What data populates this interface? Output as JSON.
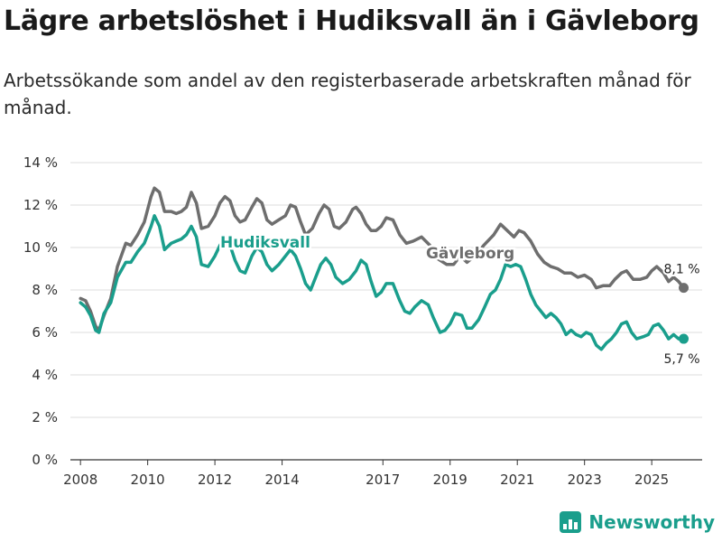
{
  "title": "Lägre arbetslöshet i Hudiksvall än i Gävleborg",
  "subtitle": "Arbetssökande som andel av den registerbaserade arbetskraften månad för månad.",
  "brand": {
    "name": "Newsworthy",
    "icon": "newsworthy-logo-icon"
  },
  "chart_data": {
    "type": "line",
    "unit": "%",
    "ylim": [
      0,
      14
    ],
    "xlim": [
      2007.7,
      2026.5
    ],
    "yticks": [
      0,
      2,
      4,
      6,
      8,
      10,
      12,
      14
    ],
    "ytick_labels": [
      "0 %",
      "2 %",
      "4 %",
      "6 %",
      "8 %",
      "10 %",
      "12 %",
      "14 %"
    ],
    "xticks": [
      2008,
      2010,
      2012,
      2014,
      2017,
      2019,
      2021,
      2023,
      2025
    ],
    "xtick_labels": [
      "2008",
      "2010",
      "2012",
      "2014",
      "2017",
      "2019",
      "2021",
      "2023",
      "2025"
    ],
    "grid": true,
    "series": [
      {
        "name": "Gävleborg",
        "color": "#6e6e6e",
        "end_label": "8,1 %",
        "points": [
          [
            2008.0,
            7.6
          ],
          [
            2008.15,
            7.5
          ],
          [
            2008.3,
            7.0
          ],
          [
            2008.45,
            6.3
          ],
          [
            2008.55,
            6.1
          ],
          [
            2008.7,
            6.8
          ],
          [
            2008.9,
            7.6
          ],
          [
            2009.1,
            9.1
          ],
          [
            2009.35,
            10.2
          ],
          [
            2009.5,
            10.1
          ],
          [
            2009.7,
            10.6
          ],
          [
            2009.9,
            11.2
          ],
          [
            2010.1,
            12.4
          ],
          [
            2010.2,
            12.8
          ],
          [
            2010.35,
            12.6
          ],
          [
            2010.5,
            11.7
          ],
          [
            2010.7,
            11.7
          ],
          [
            2010.85,
            11.6
          ],
          [
            2011.0,
            11.7
          ],
          [
            2011.15,
            11.9
          ],
          [
            2011.3,
            12.6
          ],
          [
            2011.45,
            12.1
          ],
          [
            2011.6,
            10.9
          ],
          [
            2011.8,
            11.0
          ],
          [
            2012.0,
            11.5
          ],
          [
            2012.15,
            12.1
          ],
          [
            2012.3,
            12.4
          ],
          [
            2012.45,
            12.2
          ],
          [
            2012.6,
            11.5
          ],
          [
            2012.75,
            11.2
          ],
          [
            2012.9,
            11.3
          ],
          [
            2013.1,
            11.9
          ],
          [
            2013.25,
            12.3
          ],
          [
            2013.4,
            12.1
          ],
          [
            2013.55,
            11.3
          ],
          [
            2013.7,
            11.1
          ],
          [
            2013.9,
            11.3
          ],
          [
            2014.1,
            11.5
          ],
          [
            2014.25,
            12.0
          ],
          [
            2014.4,
            11.9
          ],
          [
            2014.55,
            11.2
          ],
          [
            2014.7,
            10.6
          ],
          [
            2014.9,
            10.9
          ],
          [
            2015.1,
            11.6
          ],
          [
            2015.25,
            12.0
          ],
          [
            2015.4,
            11.8
          ],
          [
            2015.55,
            11.0
          ],
          [
            2015.7,
            10.9
          ],
          [
            2015.9,
            11.2
          ],
          [
            2016.1,
            11.8
          ],
          [
            2016.2,
            11.9
          ],
          [
            2016.35,
            11.6
          ],
          [
            2016.5,
            11.1
          ],
          [
            2016.65,
            10.8
          ],
          [
            2016.8,
            10.8
          ],
          [
            2016.95,
            11.0
          ],
          [
            2017.1,
            11.4
          ],
          [
            2017.3,
            11.3
          ],
          [
            2017.5,
            10.6
          ],
          [
            2017.7,
            10.2
          ],
          [
            2017.9,
            10.3
          ],
          [
            2018.15,
            10.5
          ],
          [
            2018.4,
            10.1
          ],
          [
            2018.6,
            9.5
          ],
          [
            2018.9,
            9.2
          ],
          [
            2019.1,
            9.2
          ],
          [
            2019.3,
            9.6
          ],
          [
            2019.5,
            9.3
          ],
          [
            2019.8,
            9.7
          ],
          [
            2020.0,
            10.1
          ],
          [
            2020.3,
            10.6
          ],
          [
            2020.5,
            11.1
          ],
          [
            2020.7,
            10.8
          ],
          [
            2020.9,
            10.5
          ],
          [
            2021.05,
            10.8
          ],
          [
            2021.2,
            10.7
          ],
          [
            2021.4,
            10.3
          ],
          [
            2021.6,
            9.7
          ],
          [
            2021.8,
            9.3
          ],
          [
            2022.0,
            9.1
          ],
          [
            2022.2,
            9.0
          ],
          [
            2022.4,
            8.8
          ],
          [
            2022.6,
            8.8
          ],
          [
            2022.8,
            8.6
          ],
          [
            2023.0,
            8.7
          ],
          [
            2023.2,
            8.5
          ],
          [
            2023.35,
            8.1
          ],
          [
            2023.55,
            8.2
          ],
          [
            2023.75,
            8.2
          ],
          [
            2023.9,
            8.5
          ],
          [
            2024.1,
            8.8
          ],
          [
            2024.25,
            8.9
          ],
          [
            2024.45,
            8.5
          ],
          [
            2024.65,
            8.5
          ],
          [
            2024.85,
            8.6
          ],
          [
            2025.0,
            8.9
          ],
          [
            2025.15,
            9.1
          ],
          [
            2025.35,
            8.8
          ],
          [
            2025.5,
            8.4
          ],
          [
            2025.65,
            8.6
          ],
          [
            2025.8,
            8.4
          ],
          [
            2025.95,
            8.1
          ]
        ]
      },
      {
        "name": "Hudiksvall",
        "color": "#1a9e8c",
        "end_label": "5,7 %",
        "points": [
          [
            2008.0,
            7.4
          ],
          [
            2008.15,
            7.2
          ],
          [
            2008.3,
            6.8
          ],
          [
            2008.45,
            6.1
          ],
          [
            2008.55,
            6.0
          ],
          [
            2008.7,
            6.9
          ],
          [
            2008.9,
            7.4
          ],
          [
            2009.1,
            8.6
          ],
          [
            2009.35,
            9.3
          ],
          [
            2009.5,
            9.3
          ],
          [
            2009.7,
            9.8
          ],
          [
            2009.9,
            10.2
          ],
          [
            2010.1,
            11.0
          ],
          [
            2010.2,
            11.5
          ],
          [
            2010.35,
            11.0
          ],
          [
            2010.5,
            9.9
          ],
          [
            2010.7,
            10.2
          ],
          [
            2010.85,
            10.3
          ],
          [
            2011.0,
            10.4
          ],
          [
            2011.15,
            10.6
          ],
          [
            2011.3,
            11.0
          ],
          [
            2011.45,
            10.5
          ],
          [
            2011.6,
            9.2
          ],
          [
            2011.8,
            9.1
          ],
          [
            2012.0,
            9.6
          ],
          [
            2012.15,
            10.1
          ],
          [
            2012.3,
            10.5
          ],
          [
            2012.45,
            10.1
          ],
          [
            2012.6,
            9.4
          ],
          [
            2012.75,
            8.9
          ],
          [
            2012.9,
            8.8
          ],
          [
            2013.1,
            9.6
          ],
          [
            2013.25,
            10.0
          ],
          [
            2013.4,
            9.8
          ],
          [
            2013.55,
            9.2
          ],
          [
            2013.7,
            8.9
          ],
          [
            2013.9,
            9.2
          ],
          [
            2014.1,
            9.6
          ],
          [
            2014.25,
            9.9
          ],
          [
            2014.4,
            9.6
          ],
          [
            2014.55,
            9.0
          ],
          [
            2014.7,
            8.3
          ],
          [
            2014.85,
            8.0
          ],
          [
            2015.0,
            8.6
          ],
          [
            2015.15,
            9.2
          ],
          [
            2015.3,
            9.5
          ],
          [
            2015.45,
            9.2
          ],
          [
            2015.6,
            8.6
          ],
          [
            2015.8,
            8.3
          ],
          [
            2016.0,
            8.5
          ],
          [
            2016.2,
            8.9
          ],
          [
            2016.35,
            9.4
          ],
          [
            2016.5,
            9.2
          ],
          [
            2016.65,
            8.4
          ],
          [
            2016.8,
            7.7
          ],
          [
            2016.95,
            7.9
          ],
          [
            2017.1,
            8.3
          ],
          [
            2017.3,
            8.3
          ],
          [
            2017.5,
            7.5
          ],
          [
            2017.65,
            7.0
          ],
          [
            2017.8,
            6.9
          ],
          [
            2017.95,
            7.2
          ],
          [
            2018.15,
            7.5
          ],
          [
            2018.35,
            7.3
          ],
          [
            2018.5,
            6.7
          ],
          [
            2018.7,
            6.0
          ],
          [
            2018.85,
            6.1
          ],
          [
            2019.0,
            6.4
          ],
          [
            2019.15,
            6.9
          ],
          [
            2019.35,
            6.8
          ],
          [
            2019.5,
            6.2
          ],
          [
            2019.65,
            6.2
          ],
          [
            2019.85,
            6.6
          ],
          [
            2020.0,
            7.1
          ],
          [
            2020.2,
            7.8
          ],
          [
            2020.35,
            8.0
          ],
          [
            2020.5,
            8.5
          ],
          [
            2020.65,
            9.2
          ],
          [
            2020.8,
            9.1
          ],
          [
            2020.95,
            9.2
          ],
          [
            2021.1,
            9.1
          ],
          [
            2021.25,
            8.5
          ],
          [
            2021.4,
            7.8
          ],
          [
            2021.55,
            7.3
          ],
          [
            2021.7,
            7.0
          ],
          [
            2021.85,
            6.7
          ],
          [
            2022.0,
            6.9
          ],
          [
            2022.15,
            6.7
          ],
          [
            2022.3,
            6.4
          ],
          [
            2022.45,
            5.9
          ],
          [
            2022.6,
            6.1
          ],
          [
            2022.75,
            5.9
          ],
          [
            2022.9,
            5.8
          ],
          [
            2023.05,
            6.0
          ],
          [
            2023.2,
            5.9
          ],
          [
            2023.35,
            5.4
          ],
          [
            2023.5,
            5.2
          ],
          [
            2023.65,
            5.5
          ],
          [
            2023.8,
            5.7
          ],
          [
            2023.95,
            6.0
          ],
          [
            2024.1,
            6.4
          ],
          [
            2024.25,
            6.5
          ],
          [
            2024.4,
            6.0
          ],
          [
            2024.55,
            5.7
          ],
          [
            2024.75,
            5.8
          ],
          [
            2024.9,
            5.9
          ],
          [
            2025.05,
            6.3
          ],
          [
            2025.2,
            6.4
          ],
          [
            2025.35,
            6.1
          ],
          [
            2025.5,
            5.7
          ],
          [
            2025.65,
            5.9
          ],
          [
            2025.8,
            5.7
          ],
          [
            2025.95,
            5.7
          ]
        ]
      }
    ],
    "annotations": [
      {
        "text": "Hudiksvall",
        "series": "Hudiksvall",
        "x": 2013.5,
        "y": 10.25
      },
      {
        "text": "Gävleborg",
        "series": "Gävleborg",
        "x": 2019.6,
        "y": 9.75
      }
    ]
  }
}
